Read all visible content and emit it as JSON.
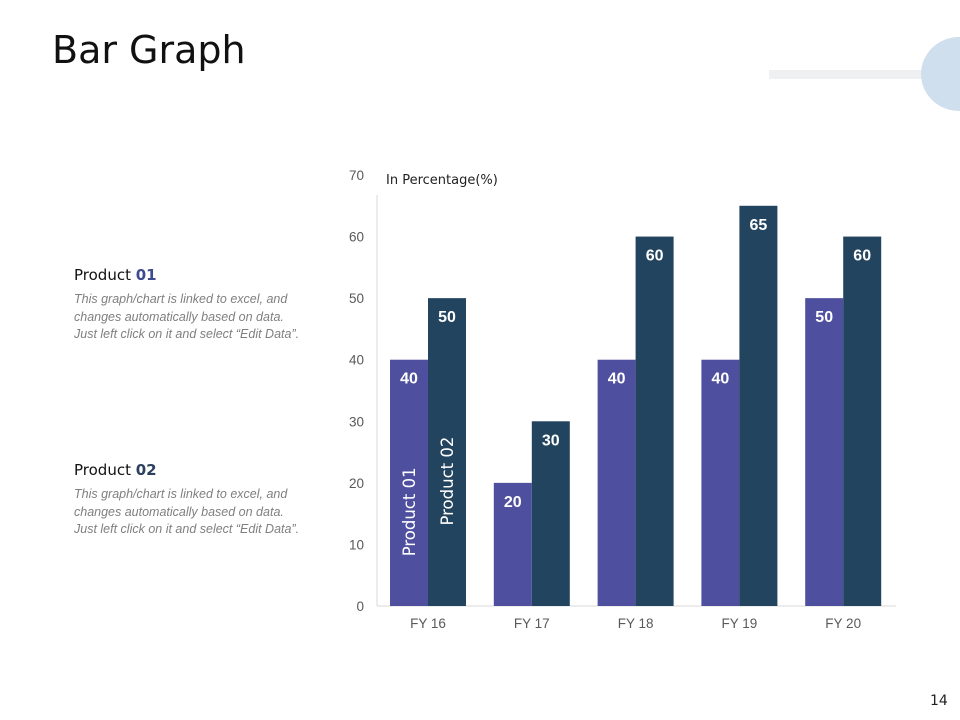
{
  "slide": {
    "title": "Bar Graph",
    "page_number": "14"
  },
  "legend": [
    {
      "title_text": "Product ",
      "title_num": "01",
      "description": "This graph/chart is linked to excel, and changes automatically based on data. Just left click on it and select “Edit Data”."
    },
    {
      "title_text": "Product ",
      "title_num": "02",
      "description": "This graph/chart is linked to excel, and changes automatically based on data. Just left click on it and select “Edit Data”."
    }
  ],
  "colors": {
    "product_01": "#4e4f9e",
    "product_02": "#23445e",
    "axis": "#d9d9d9"
  },
  "chart_data": {
    "type": "bar",
    "title": "",
    "unit_label": "In Percentage(%)",
    "categories": [
      "FY 16",
      "FY 17",
      "FY 18",
      "FY 19",
      "FY 20"
    ],
    "series": [
      {
        "name": "Product 01",
        "values": [
          40,
          20,
          40,
          40,
          50
        ]
      },
      {
        "name": "Product 02",
        "values": [
          50,
          30,
          60,
          65,
          60
        ]
      }
    ],
    "ylim": [
      0,
      70
    ],
    "yticks": [
      0,
      10,
      20,
      30,
      40,
      50,
      60,
      70
    ],
    "xlabel": "",
    "ylabel": "",
    "grid": false,
    "series_label_position": "inside-first-bar"
  }
}
